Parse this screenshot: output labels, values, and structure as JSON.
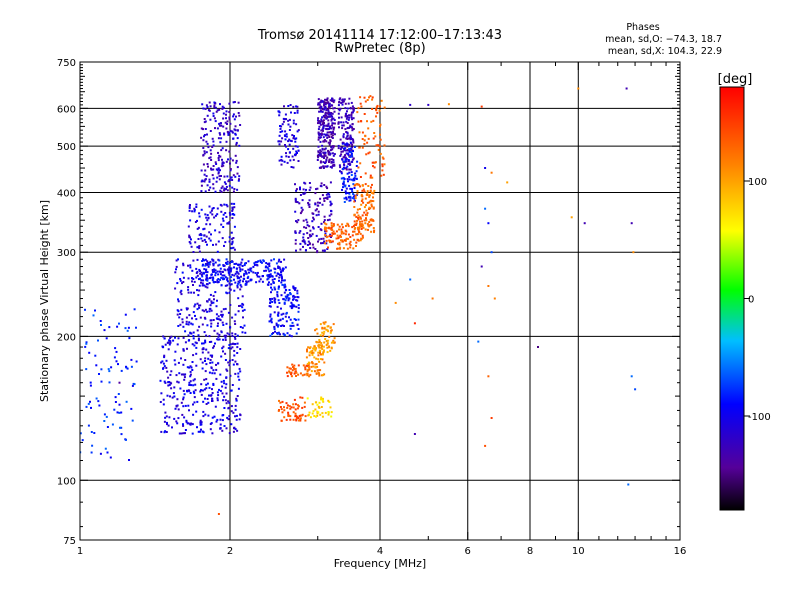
{
  "chart_data": {
    "type": "scatter",
    "title": "Tromsø 20141114 17:12:00–17:13:43",
    "subtitle": "RwPretec (8p)",
    "xlabel": "Frequency [MHz]",
    "ylabel": "Stationary phase Virtual Height [km]",
    "x_scale": "log",
    "y_scale": "log",
    "xlim": [
      1,
      16
    ],
    "ylim": [
      75,
      750
    ],
    "x_ticks": [
      1,
      2,
      4,
      6,
      8,
      10,
      16
    ],
    "x_gridlines": [
      2,
      4,
      6,
      8,
      10
    ],
    "y_ticks": [
      75,
      100,
      200,
      300,
      400,
      500,
      600,
      750
    ],
    "y_gridlines": [
      100,
      200,
      300,
      400,
      500,
      600
    ],
    "grid": true,
    "legend_placement": "top-right",
    "legend": {
      "title": "Phases",
      "line_o": "mean, sd,O: −74.3, 18.7",
      "line_x": "mean, sd,X: 104.3, 22.9"
    },
    "colorbar": {
      "label": "[deg]",
      "range": [
        -180,
        180
      ],
      "ticks": [
        100,
        0,
        -100
      ],
      "colormap": "rainbow: black(-180) → purple → blue → cyan → green → yellow → orange → red(+180)"
    },
    "clusters": [
      {
        "f": [
          1.0,
          1.3
        ],
        "h": [
          110,
          230
        ],
        "phase": -80,
        "n": 90
      },
      {
        "f": [
          1.45,
          2.1
        ],
        "h": [
          125,
          200
        ],
        "phase": -105,
        "n": 380
      },
      {
        "f": [
          1.55,
          2.15
        ],
        "h": [
          200,
          290
        ],
        "phase": -105,
        "n": 260
      },
      {
        "f": [
          1.65,
          2.05
        ],
        "h": [
          300,
          380
        ],
        "phase": -105,
        "n": 120
      },
      {
        "f": [
          1.75,
          2.1
        ],
        "h": [
          400,
          620
        ],
        "phase": -118,
        "n": 220
      },
      {
        "f": [
          1.75,
          2.6
        ],
        "h": [
          255,
          290
        ],
        "phase": -92,
        "n": 240
      },
      {
        "f": [
          2.4,
          2.75
        ],
        "h": [
          200,
          255
        ],
        "phase": -92,
        "n": 140
      },
      {
        "f": [
          2.5,
          2.75
        ],
        "h": [
          450,
          610
        ],
        "phase": -110,
        "n": 90
      },
      {
        "f": [
          2.7,
          3.2
        ],
        "h": [
          300,
          420
        ],
        "phase": -122,
        "n": 160
      },
      {
        "f": [
          3.0,
          3.25
        ],
        "h": [
          450,
          630
        ],
        "phase": -128,
        "n": 260
      },
      {
        "f": [
          3.3,
          3.55
        ],
        "h": [
          440,
          630
        ],
        "phase": -125,
        "n": 160
      },
      {
        "f": [
          3.35,
          3.6
        ],
        "h": [
          380,
          510
        ],
        "phase": -85,
        "n": 90
      },
      {
        "f": [
          3.1,
          3.7
        ],
        "h": [
          305,
          345
        ],
        "phase": 132,
        "n": 120
      },
      {
        "f": [
          3.55,
          3.9
        ],
        "h": [
          330,
          420
        ],
        "phase": 128,
        "n": 120
      },
      {
        "f": [
          3.6,
          4.1
        ],
        "h": [
          420,
          640
        ],
        "phase": 135,
        "n": 80
      },
      {
        "f": [
          2.5,
          2.85
        ],
        "h": [
          133,
          150
        ],
        "phase": 140,
        "n": 60
      },
      {
        "f": [
          2.6,
          2.9
        ],
        "h": [
          165,
          175
        ],
        "phase": 138,
        "n": 40
      },
      {
        "f": [
          2.85,
          3.1
        ],
        "h": [
          165,
          195
        ],
        "phase": 108,
        "n": 80
      },
      {
        "f": [
          2.95,
          3.25
        ],
        "h": [
          185,
          215
        ],
        "phase": 103,
        "n": 60
      },
      {
        "f": [
          2.85,
          3.2
        ],
        "h": [
          135,
          150
        ],
        "phase": 75,
        "n": 40
      }
    ],
    "sparse_points": [
      {
        "x": 4.6,
        "y": 610,
        "phase": -120
      },
      {
        "x": 5.0,
        "y": 610,
        "phase": -120
      },
      {
        "x": 5.5,
        "y": 612,
        "phase": 110
      },
      {
        "x": 6.4,
        "y": 605,
        "phase": 150
      },
      {
        "x": 6.5,
        "y": 450,
        "phase": -100
      },
      {
        "x": 6.7,
        "y": 440,
        "phase": 120
      },
      {
        "x": 7.2,
        "y": 420,
        "phase": 100
      },
      {
        "x": 6.5,
        "y": 370,
        "phase": -60
      },
      {
        "x": 6.6,
        "y": 345,
        "phase": -90
      },
      {
        "x": 6.7,
        "y": 300,
        "phase": -70
      },
      {
        "x": 6.4,
        "y": 280,
        "phase": -130
      },
      {
        "x": 6.6,
        "y": 255,
        "phase": 120
      },
      {
        "x": 6.8,
        "y": 240,
        "phase": 115
      },
      {
        "x": 6.3,
        "y": 195,
        "phase": -60
      },
      {
        "x": 6.6,
        "y": 165,
        "phase": 130
      },
      {
        "x": 6.7,
        "y": 135,
        "phase": 150
      },
      {
        "x": 6.5,
        "y": 118,
        "phase": 140
      },
      {
        "x": 4.7,
        "y": 125,
        "phase": -130
      },
      {
        "x": 4.6,
        "y": 263,
        "phase": -60
      },
      {
        "x": 4.7,
        "y": 213,
        "phase": 160
      },
      {
        "x": 5.1,
        "y": 240,
        "phase": 120
      },
      {
        "x": 8.3,
        "y": 190,
        "phase": -150
      },
      {
        "x": 10.3,
        "y": 345,
        "phase": -130
      },
      {
        "x": 10.0,
        "y": 660,
        "phase": 110
      },
      {
        "x": 12.5,
        "y": 660,
        "phase": -130
      },
      {
        "x": 12.8,
        "y": 345,
        "phase": -130
      },
      {
        "x": 12.8,
        "y": 165,
        "phase": -60
      },
      {
        "x": 13.0,
        "y": 155,
        "phase": -70
      },
      {
        "x": 12.6,
        "y": 98,
        "phase": -60
      },
      {
        "x": 1.9,
        "y": 85,
        "phase": 140
      },
      {
        "x": 1.2,
        "y": 160,
        "phase": -140
      },
      {
        "x": 4.3,
        "y": 235,
        "phase": 110
      },
      {
        "x": 9.7,
        "y": 355,
        "phase": 100
      },
      {
        "x": 12.9,
        "y": 300,
        "phase": 110
      }
    ]
  }
}
